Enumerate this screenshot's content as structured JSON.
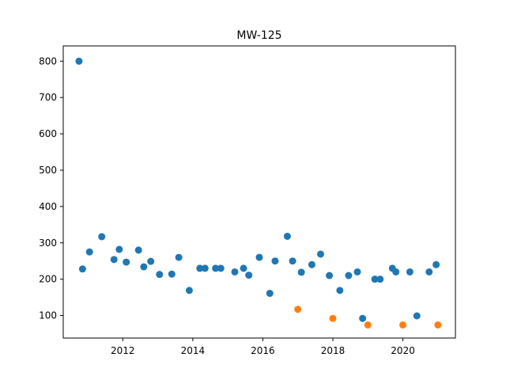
{
  "chart_data": {
    "type": "scatter",
    "title": "MW-125",
    "xlabel": "",
    "ylabel": "",
    "xlim": [
      2010.3,
      2021.5
    ],
    "ylim": [
      38,
      842
    ],
    "x_ticks": [
      2012,
      2014,
      2016,
      2018,
      2020
    ],
    "x_tick_labels": [
      "2012",
      "2014",
      "2016",
      "2018",
      "2020"
    ],
    "y_ticks": [
      100,
      200,
      300,
      400,
      500,
      600,
      700,
      800
    ],
    "y_tick_labels": [
      "100",
      "200",
      "300",
      "400",
      "500",
      "600",
      "700",
      "800"
    ],
    "grid": false,
    "legend": "none",
    "series": [
      {
        "color": "#1f77b4",
        "points": [
          [
            2010.75,
            800
          ],
          [
            2010.85,
            228
          ],
          [
            2011.05,
            275
          ],
          [
            2011.4,
            317
          ],
          [
            2011.75,
            254
          ],
          [
            2011.9,
            282
          ],
          [
            2012.1,
            247
          ],
          [
            2012.45,
            280
          ],
          [
            2012.6,
            234
          ],
          [
            2012.8,
            249
          ],
          [
            2013.05,
            213
          ],
          [
            2013.4,
            214
          ],
          [
            2013.6,
            260
          ],
          [
            2013.9,
            169
          ],
          [
            2014.2,
            230
          ],
          [
            2014.35,
            230
          ],
          [
            2014.65,
            230
          ],
          [
            2014.8,
            230
          ],
          [
            2015.2,
            220
          ],
          [
            2015.45,
            230
          ],
          [
            2015.6,
            211
          ],
          [
            2015.9,
            260
          ],
          [
            2016.2,
            161
          ],
          [
            2016.35,
            250
          ],
          [
            2016.7,
            318
          ],
          [
            2016.85,
            250
          ],
          [
            2017.1,
            219
          ],
          [
            2017.4,
            240
          ],
          [
            2017.65,
            269
          ],
          [
            2017.9,
            210
          ],
          [
            2018.2,
            169
          ],
          [
            2018.45,
            210
          ],
          [
            2018.7,
            220
          ],
          [
            2018.85,
            92
          ],
          [
            2019.2,
            200
          ],
          [
            2019.35,
            200
          ],
          [
            2019.7,
            230
          ],
          [
            2019.8,
            220
          ],
          [
            2020.2,
            220
          ],
          [
            2020.4,
            99
          ],
          [
            2020.75,
            220
          ],
          [
            2020.95,
            240
          ]
        ]
      },
      {
        "color": "#ff7f0e",
        "points": [
          [
            2017.0,
            117
          ],
          [
            2018.0,
            92
          ],
          [
            2019.0,
            74
          ],
          [
            2020.0,
            74
          ],
          [
            2021.0,
            74
          ]
        ]
      }
    ]
  }
}
